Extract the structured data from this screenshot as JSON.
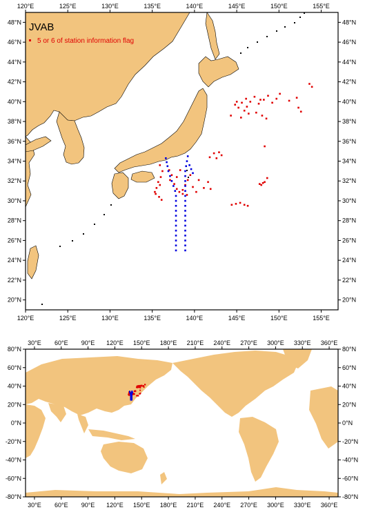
{
  "map_title": "JVAB",
  "legend": {
    "label": "5 or 6 of station information flag",
    "marker_color": "#e00000"
  },
  "colors": {
    "land": "#f2c47e",
    "ocean": "#ffffff",
    "flagged": "#e00000",
    "normal": "#0000dd"
  },
  "top_map": {
    "lon_ticks": [
      "120°E",
      "125°E",
      "130°E",
      "135°E",
      "140°E",
      "145°E",
      "150°E",
      "155°E"
    ],
    "lat_ticks": [
      "20°N",
      "22°N",
      "24°N",
      "26°N",
      "28°N",
      "30°N",
      "32°N",
      "34°N",
      "36°N",
      "38°N",
      "40°N",
      "42°N",
      "44°N",
      "46°N",
      "48°N"
    ],
    "lon_range": [
      120,
      157
    ],
    "lat_range": [
      19,
      49
    ]
  },
  "bottom_map": {
    "lon_ticks": [
      "30°E",
      "60°E",
      "90°E",
      "120°E",
      "150°E",
      "180°E",
      "210°E",
      "240°E",
      "270°E",
      "300°E",
      "330°E",
      "360°E"
    ],
    "lat_ticks": [
      "-80°N",
      "-60°N",
      "-40°N",
      "-20°N",
      "0°N",
      "20°N",
      "40°N",
      "60°N",
      "80°N"
    ],
    "lon_range": [
      20,
      370
    ],
    "lat_range": [
      -80,
      80
    ]
  },
  "chart_data": {
    "type": "scatter",
    "series": [
      {
        "name": "5 or 6 of station information flag",
        "points": [
          [
            135.9,
            33.6
          ],
          [
            136.2,
            33.0
          ],
          [
            136.0,
            32.4
          ],
          [
            135.7,
            31.9
          ],
          [
            135.5,
            31.3
          ],
          [
            135.4,
            30.7
          ],
          [
            135.8,
            30.4
          ],
          [
            136.1,
            30.1
          ],
          [
            135.3,
            30.9
          ],
          [
            135.9,
            31.6
          ],
          [
            137.0,
            33.1
          ],
          [
            137.3,
            32.6
          ],
          [
            137.1,
            32.1
          ],
          [
            137.6,
            31.7
          ],
          [
            137.9,
            31.2
          ],
          [
            138.2,
            30.9
          ],
          [
            138.6,
            31.1
          ],
          [
            138.9,
            31.6
          ],
          [
            139.2,
            32.1
          ],
          [
            139.5,
            32.6
          ],
          [
            138.3,
            33.1
          ],
          [
            137.9,
            32.4
          ],
          [
            138.6,
            30.7
          ],
          [
            139.8,
            31.4
          ],
          [
            140.2,
            30.9
          ],
          [
            141.1,
            31.3
          ],
          [
            141.6,
            31.9
          ],
          [
            141.9,
            31.2
          ],
          [
            140.5,
            32.1
          ],
          [
            139.1,
            30.6
          ],
          [
            141.8,
            34.4
          ],
          [
            142.3,
            34.8
          ],
          [
            142.9,
            34.9
          ],
          [
            143.2,
            34.6
          ],
          [
            142.6,
            34.3
          ],
          [
            144.4,
            29.6
          ],
          [
            144.9,
            29.7
          ],
          [
            145.4,
            29.8
          ],
          [
            145.9,
            29.6
          ],
          [
            146.3,
            29.5
          ],
          [
            147.9,
            31.6
          ],
          [
            148.3,
            31.9
          ],
          [
            148.6,
            32.3
          ],
          [
            148.1,
            31.8
          ],
          [
            147.7,
            31.7
          ],
          [
            144.8,
            39.7
          ],
          [
            145.2,
            39.4
          ],
          [
            145.6,
            39.9
          ],
          [
            146.1,
            40.3
          ],
          [
            146.6,
            40.0
          ],
          [
            147.1,
            40.5
          ],
          [
            147.6,
            39.8
          ],
          [
            148.2,
            40.2
          ],
          [
            148.7,
            40.6
          ],
          [
            149.2,
            39.9
          ],
          [
            149.7,
            40.3
          ],
          [
            150.1,
            40.8
          ],
          [
            145.9,
            39.1
          ],
          [
            146.4,
            38.8
          ],
          [
            147.3,
            38.9
          ],
          [
            148.0,
            38.6
          ],
          [
            148.5,
            38.3
          ],
          [
            144.3,
            38.6
          ],
          [
            145.5,
            38.4
          ],
          [
            146.2,
            39.5
          ],
          [
            148.3,
            35.5
          ],
          [
            152.3,
            39.4
          ],
          [
            152.6,
            39.0
          ],
          [
            152.1,
            40.4
          ],
          [
            153.6,
            41.8
          ],
          [
            153.9,
            41.5
          ],
          [
            151.2,
            40.1
          ],
          [
            145.0,
            40.0
          ],
          [
            147.8,
            40.2
          ]
        ]
      },
      {
        "name": "",
        "points": [
          [
            136.6,
            34.3
          ],
          [
            136.7,
            33.9
          ],
          [
            136.8,
            33.5
          ],
          [
            136.9,
            33.0
          ],
          [
            137.1,
            32.5
          ],
          [
            137.3,
            32.0
          ],
          [
            137.5,
            31.5
          ],
          [
            137.7,
            31.0
          ],
          [
            137.8,
            30.5
          ],
          [
            137.8,
            30.0
          ],
          [
            137.8,
            29.5
          ],
          [
            137.8,
            29.0
          ],
          [
            137.8,
            28.5
          ],
          [
            137.8,
            28.0
          ],
          [
            137.8,
            27.5
          ],
          [
            137.8,
            27.0
          ],
          [
            137.8,
            26.5
          ],
          [
            137.8,
            26.0
          ],
          [
            137.8,
            25.5
          ],
          [
            137.8,
            25.0
          ],
          [
            139.2,
            34.5
          ],
          [
            139.1,
            34.0
          ],
          [
            139.0,
            33.5
          ],
          [
            138.9,
            33.0
          ],
          [
            138.9,
            32.5
          ],
          [
            138.9,
            32.0
          ],
          [
            138.9,
            31.5
          ],
          [
            138.9,
            31.0
          ],
          [
            138.9,
            30.5
          ],
          [
            138.9,
            30.0
          ],
          [
            138.9,
            29.5
          ],
          [
            138.9,
            29.0
          ],
          [
            138.9,
            28.5
          ],
          [
            138.9,
            28.0
          ],
          [
            138.9,
            27.5
          ],
          [
            138.9,
            27.0
          ],
          [
            138.9,
            26.5
          ],
          [
            138.9,
            26.0
          ],
          [
            138.9,
            25.5
          ],
          [
            138.9,
            25.0
          ],
          [
            139.4,
            33.6
          ],
          [
            139.6,
            33.2
          ],
          [
            139.8,
            32.8
          ]
        ]
      }
    ],
    "xlabel": "",
    "ylabel": ""
  }
}
